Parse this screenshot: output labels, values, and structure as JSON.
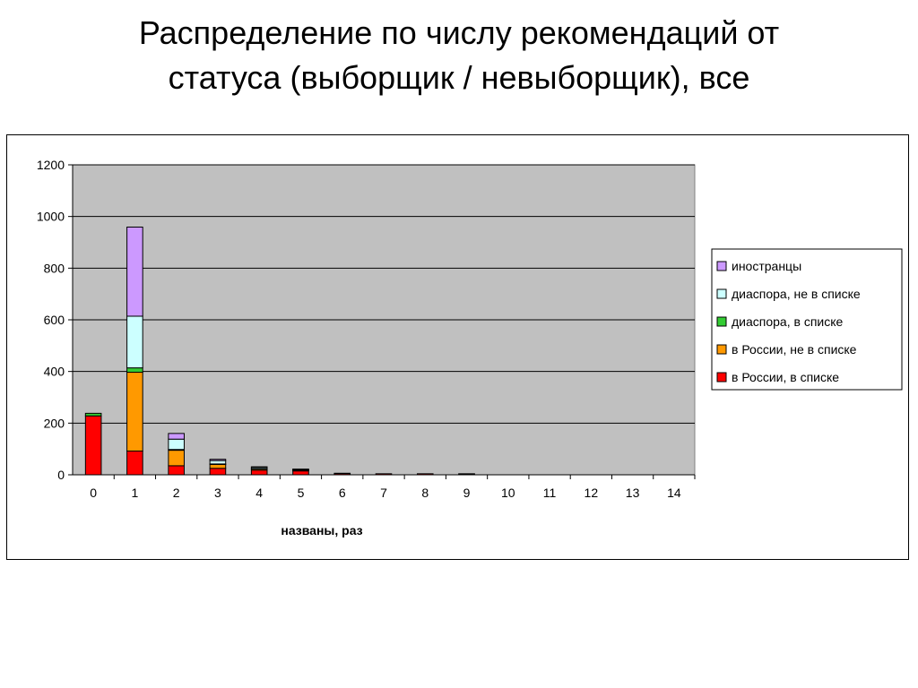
{
  "title": {
    "line1": "Распределение по числу рекомендаций от",
    "line2": "статуса (выборщик / невыборщик), все"
  },
  "chart_data": {
    "type": "bar",
    "stacked": true,
    "categories": [
      "0",
      "1",
      "2",
      "3",
      "4",
      "5",
      "6",
      "7",
      "8",
      "9",
      "10",
      "11",
      "12",
      "13",
      "14"
    ],
    "xlabel": "названы, раз",
    "ylabel": "",
    "ylim": [
      0,
      1200
    ],
    "yticks": [
      0,
      200,
      400,
      600,
      800,
      1000,
      1200
    ],
    "grid": true,
    "legend_position": "right",
    "plot_background": "#c0c0c0",
    "series": [
      {
        "name": "в России, в списке",
        "color": "#ff0000",
        "values": [
          228,
          92,
          35,
          25,
          18,
          15,
          5,
          4,
          4,
          3,
          0,
          0,
          0,
          0,
          0
        ]
      },
      {
        "name": "в России, не в списке",
        "color": "#ff9900",
        "values": [
          0,
          305,
          60,
          15,
          5,
          3,
          0,
          0,
          0,
          0,
          0,
          0,
          0,
          0,
          0
        ]
      },
      {
        "name": "диаспора, в списке",
        "color": "#33cc33",
        "values": [
          10,
          17,
          3,
          2,
          1,
          1,
          0,
          0,
          0,
          0,
          0,
          0,
          0,
          0,
          0
        ]
      },
      {
        "name": "диаспора, не в списке",
        "color": "#ccffff",
        "values": [
          0,
          200,
          40,
          13,
          5,
          2,
          1,
          0,
          0,
          1,
          0,
          0,
          0,
          0,
          0
        ]
      },
      {
        "name": "иностранцы",
        "color": "#cc99ff",
        "values": [
          0,
          345,
          22,
          5,
          2,
          1,
          0,
          0,
          0,
          0,
          0,
          0,
          0,
          0,
          0
        ]
      }
    ]
  }
}
